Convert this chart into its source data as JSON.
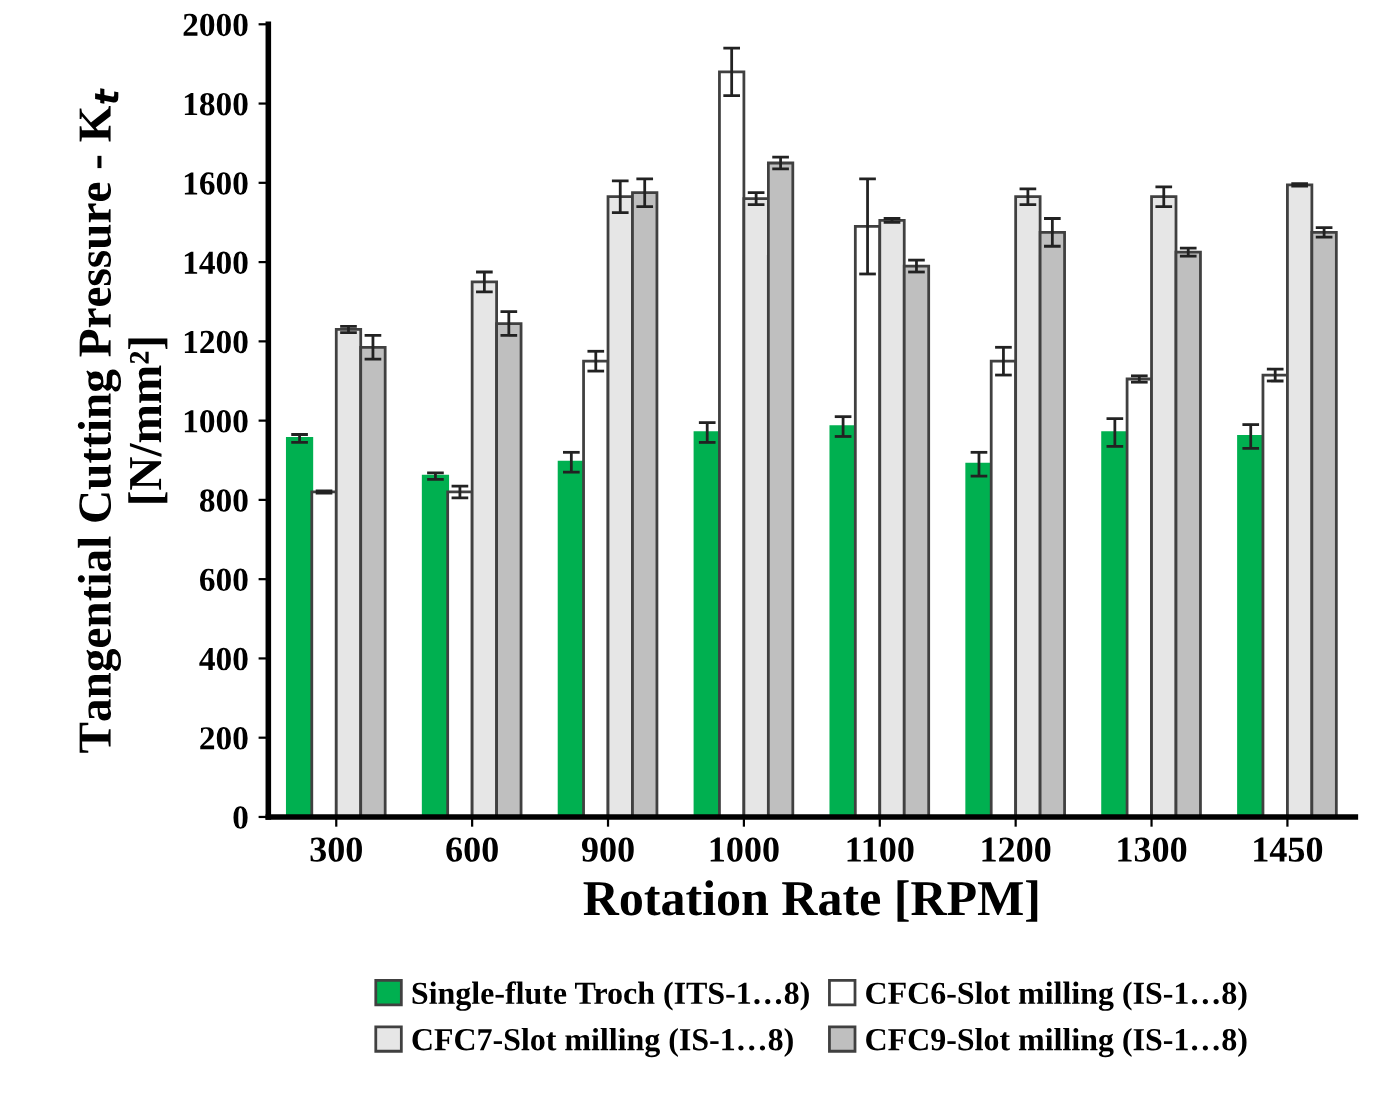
{
  "chart_data": {
    "type": "bar",
    "xlabel": "Rotation Rate [RPM]",
    "ylabel": "Tangential Cutting Pressure - K$_{t}$\n[N/mm²]",
    "categories": [
      "300",
      "600",
      "900",
      "1000",
      "1100",
      "1200",
      "1300",
      "1450"
    ],
    "series": [
      {
        "name": "Single-flute Troch (ITS-1…8)",
        "color": "#00b050",
        "values": [
          955,
          860,
          895,
          970,
          985,
          890,
          970,
          960
        ],
        "errors": [
          10,
          8,
          25,
          25,
          25,
          30,
          35,
          30
        ]
      },
      {
        "name": "CFC6-Slot milling (IS-1…8)",
        "color": "#ffffff",
        "values": [
          820,
          820,
          1150,
          1880,
          1490,
          1150,
          1105,
          1115
        ],
        "errors": [
          3,
          15,
          25,
          60,
          120,
          35,
          8,
          15
        ]
      },
      {
        "name": "CFC7-Slot milling (IS-1…8)",
        "color": "#e6e6e6",
        "values": [
          1230,
          1350,
          1565,
          1560,
          1505,
          1565,
          1565,
          1595
        ],
        "errors": [
          8,
          25,
          40,
          15,
          5,
          20,
          25,
          3
        ]
      },
      {
        "name": "CFC9-Slot milling (IS-1…8)",
        "color": "#bfbfbf",
        "values": [
          1185,
          1245,
          1575,
          1650,
          1390,
          1475,
          1425,
          1475
        ],
        "errors": [
          30,
          30,
          35,
          15,
          15,
          35,
          10,
          12
        ]
      }
    ],
    "ylim": [
      0,
      2000
    ],
    "yticks": [
      0,
      200,
      400,
      600,
      800,
      1000,
      1200,
      1400,
      1600,
      1800,
      2000
    ],
    "grid": false,
    "legend": "bottom"
  }
}
